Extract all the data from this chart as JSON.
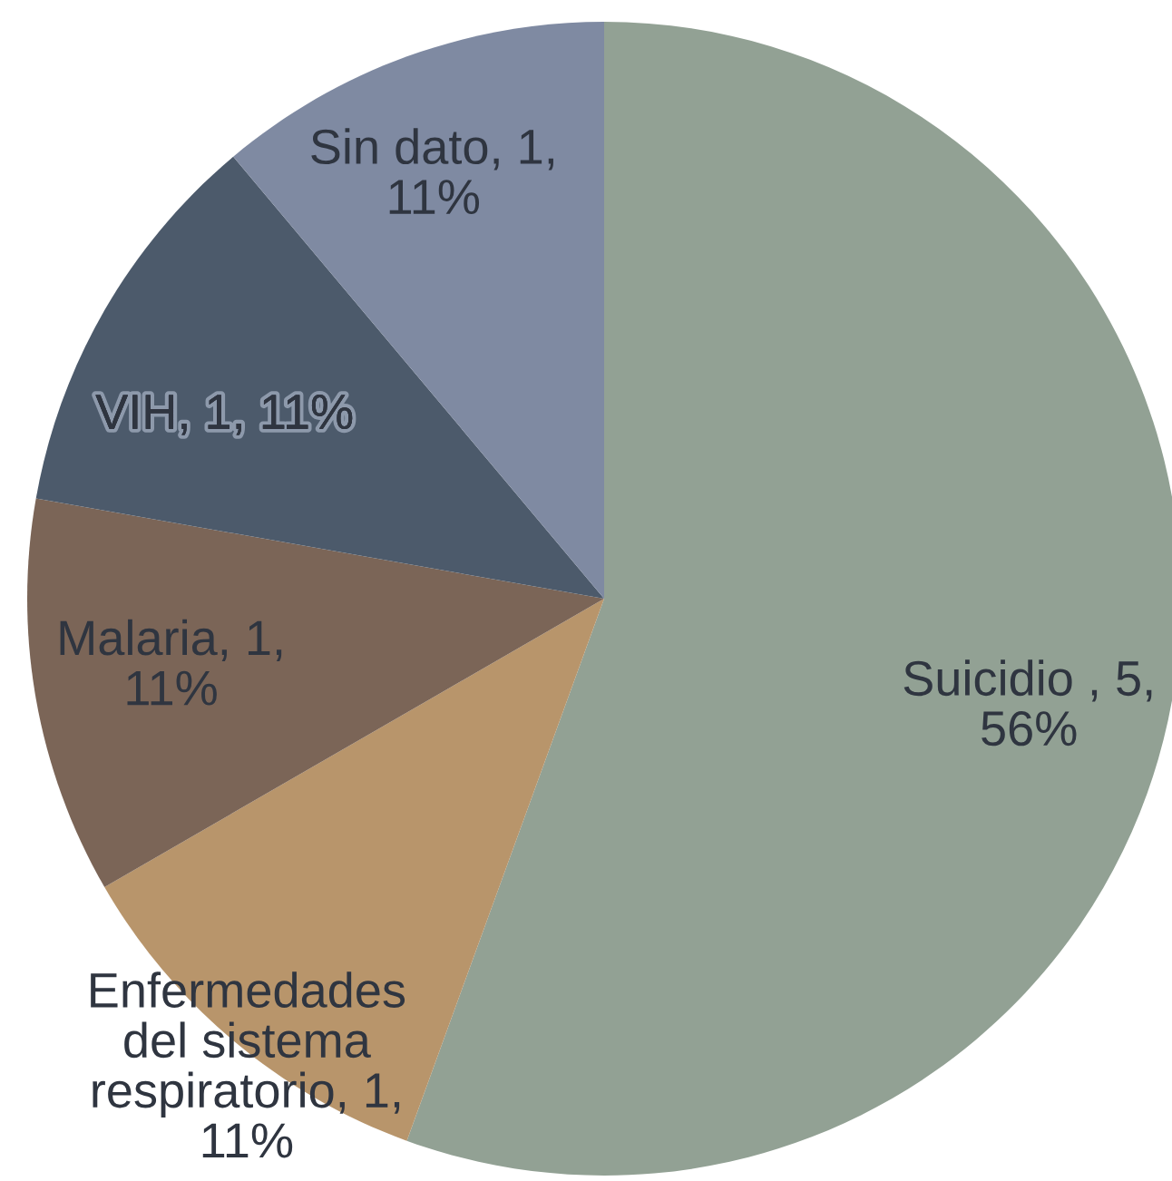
{
  "chart_data": {
    "type": "pie",
    "categories": [
      "Suicidio ",
      "Enfermedades del sistema respiratorio",
      "Malaria",
      "VIH",
      "Sin dato"
    ],
    "values": [
      5,
      1,
      1,
      1,
      1
    ],
    "value_labels": [
      "5, 56%",
      "1, 11%",
      "1, 11%",
      "1, 11%",
      "1, 11%"
    ],
    "colors": [
      "#92a194",
      "#b8956b",
      "#7b6557",
      "#4c5a6b",
      "#7f8aa2"
    ]
  }
}
